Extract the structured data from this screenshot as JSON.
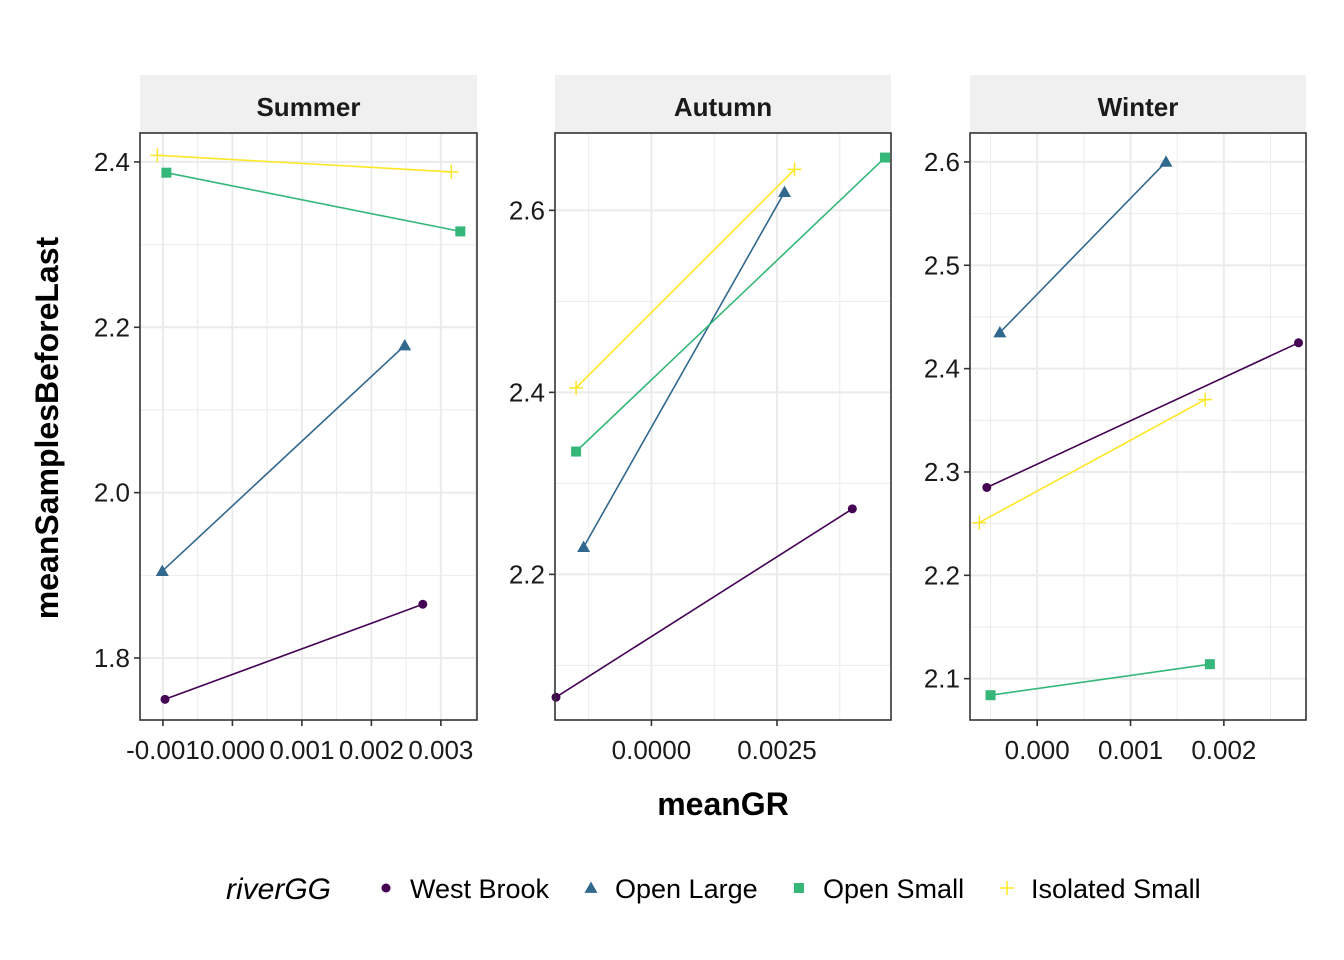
{
  "chart_data": {
    "type": "line",
    "xlabel": "meanGR",
    "ylabel": "meanSamplesBeforeLast",
    "legend": {
      "title": "riverGG",
      "position": "bottom",
      "entries": [
        {
          "name": "West Brook",
          "color": "#440154",
          "shape": "circle"
        },
        {
          "name": "Open Large",
          "color": "#31688E",
          "shape": "triangle"
        },
        {
          "name": "Open Small",
          "color": "#35B779",
          "shape": "square"
        },
        {
          "name": "Isolated Small",
          "color": "#FDE725",
          "shape": "plus"
        }
      ]
    },
    "grid": true,
    "panels": [
      {
        "strip": "Summer",
        "xlim": [
          -0.00133,
          0.00352
        ],
        "ylim": [
          1.725,
          2.435
        ],
        "x_ticks": [
          -0.001,
          0.0,
          0.001,
          0.002,
          0.003
        ],
        "x_tick_labels": [
          "-0.001",
          "0.000",
          "0.001",
          "0.002",
          "0.003"
        ],
        "y_ticks": [
          1.8,
          2.0,
          2.2,
          2.4
        ],
        "y_tick_labels": [
          "1.8",
          "2.0",
          "2.2",
          "2.4"
        ],
        "series": [
          {
            "name": "West Brook",
            "points": [
              [
                -0.00097,
                1.75
              ],
              [
                0.00274,
                1.865
              ]
            ]
          },
          {
            "name": "Open Large",
            "points": [
              [
                -0.00101,
                1.905
              ],
              [
                0.00248,
                2.178
              ]
            ]
          },
          {
            "name": "Open Small",
            "points": [
              [
                -0.00095,
                2.387
              ],
              [
                0.00328,
                2.316
              ]
            ]
          },
          {
            "name": "Isolated Small",
            "points": [
              [
                -0.00108,
                2.408
              ],
              [
                0.00315,
                2.388
              ]
            ]
          }
        ]
      },
      {
        "strip": "Autumn",
        "xlim": [
          -0.00192,
          0.00477
        ],
        "ylim": [
          2.04,
          2.685
        ],
        "x_ticks": [
          0.0,
          0.0025
        ],
        "x_tick_labels": [
          "0.0000",
          "0.0025"
        ],
        "y_ticks": [
          2.2,
          2.4,
          2.6
        ],
        "y_tick_labels": [
          "2.2",
          "2.4",
          "2.6"
        ],
        "series": [
          {
            "name": "West Brook",
            "points": [
              [
                -0.0019,
                2.065
              ],
              [
                0.004,
                2.272
              ]
            ]
          },
          {
            "name": "Open Large",
            "points": [
              [
                -0.00135,
                2.23
              ],
              [
                0.00265,
                2.62
              ]
            ]
          },
          {
            "name": "Open Small",
            "points": [
              [
                -0.0015,
                2.335
              ],
              [
                0.00465,
                2.658
              ]
            ]
          },
          {
            "name": "Isolated Small",
            "points": [
              [
                -0.0015,
                2.405
              ],
              [
                0.00285,
                2.645
              ]
            ]
          }
        ]
      },
      {
        "strip": "Winter",
        "xlim": [
          -0.00072,
          0.00288
        ],
        "ylim": [
          2.06,
          2.628
        ],
        "x_ticks": [
          0.0,
          0.001,
          0.002
        ],
        "x_tick_labels": [
          "0.000",
          "0.001",
          "0.002"
        ],
        "y_ticks": [
          2.1,
          2.2,
          2.3,
          2.4,
          2.5,
          2.6
        ],
        "y_tick_labels": [
          "2.1",
          "2.2",
          "2.3",
          "2.4",
          "2.5",
          "2.6"
        ],
        "series": [
          {
            "name": "West Brook",
            "points": [
              [
                -0.00054,
                2.285
              ],
              [
                0.0028,
                2.425
              ]
            ]
          },
          {
            "name": "Open Large",
            "points": [
              [
                -0.0004,
                2.435
              ],
              [
                0.00138,
                2.6
              ]
            ]
          },
          {
            "name": "Open Small",
            "points": [
              [
                -0.0005,
                2.084
              ],
              [
                0.00185,
                2.114
              ]
            ]
          },
          {
            "name": "Isolated Small",
            "points": [
              [
                -0.00062,
                2.251
              ],
              [
                0.0018,
                2.37
              ]
            ]
          }
        ]
      }
    ]
  }
}
